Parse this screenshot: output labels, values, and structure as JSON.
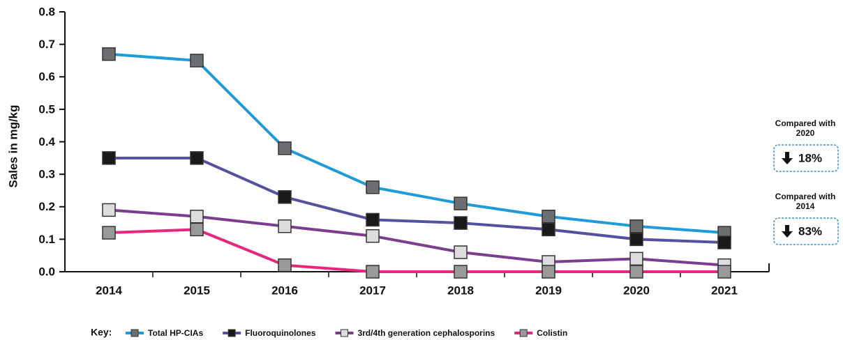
{
  "chart_data": {
    "type": "line",
    "y_label": "Sales in mg/kg",
    "categories": [
      "2014",
      "2015",
      "2016",
      "2017",
      "2018",
      "2019",
      "2020",
      "2021"
    ],
    "series": [
      {
        "name": "Total HP-CIAs",
        "color": "#1f9bd7",
        "marker_color": "#6d6e71",
        "values": [
          0.67,
          0.65,
          0.38,
          0.26,
          0.21,
          0.17,
          0.14,
          0.12
        ]
      },
      {
        "name": "Fluoroquinolones",
        "color": "#55509f",
        "marker_color": "#1a1a1a",
        "values": [
          0.35,
          0.35,
          0.23,
          0.16,
          0.15,
          0.13,
          0.1,
          0.09
        ]
      },
      {
        "name": "3rd/4th generation cephalosporins",
        "color": "#7b3e8e",
        "marker_color": "#dcdcdc",
        "values": [
          0.19,
          0.17,
          0.14,
          0.11,
          0.06,
          0.03,
          0.04,
          0.02
        ]
      },
      {
        "name": "Colistin",
        "color": "#e5287b",
        "marker_color": "#9a9a9a",
        "values": [
          0.12,
          0.13,
          0.02,
          0.0,
          0.0,
          0.0,
          0.0,
          0.0
        ]
      }
    ],
    "ylim": [
      0,
      0.8
    ],
    "yticks": [
      {
        "value": 0,
        "label": "0.0"
      },
      0.1,
      0.2,
      0.3,
      0.4,
      0.5,
      0.6,
      0.7,
      0.8
    ],
    "legend_title": "Key:",
    "annotations": [
      {
        "title": "Compared with 2020",
        "value": "18%"
      },
      {
        "title": "Compared with 2014",
        "value": "83%"
      }
    ]
  }
}
